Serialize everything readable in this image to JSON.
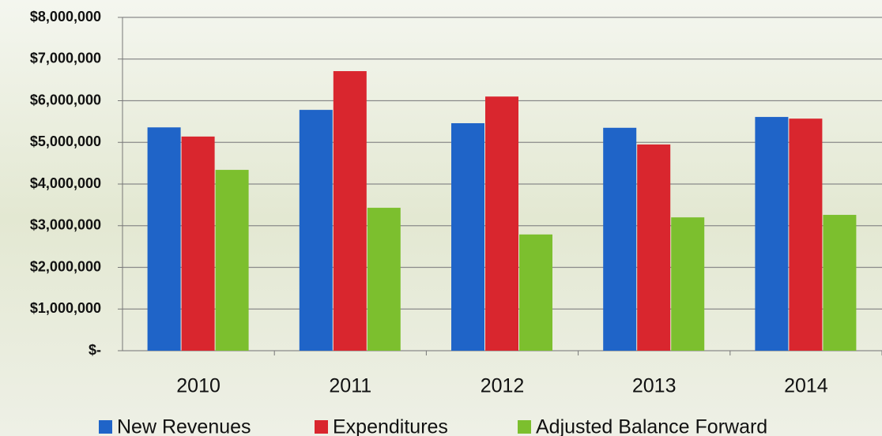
{
  "chart_data": {
    "type": "bar",
    "categories": [
      "2010",
      "2011",
      "2012",
      "2013",
      "2014"
    ],
    "series": [
      {
        "name": "New Revenues",
        "color": "#1f64c8",
        "values": [
          5360000,
          5780000,
          5460000,
          5350000,
          5610000
        ]
      },
      {
        "name": "Expenditures",
        "color": "#d9262e",
        "values": [
          5140000,
          6710000,
          6100000,
          4950000,
          5570000
        ]
      },
      {
        "name": "Adjusted Balance Forward",
        "color": "#7cbf2e",
        "values": [
          4340000,
          3430000,
          2790000,
          3200000,
          3260000
        ]
      }
    ],
    "ylim": [
      0,
      8000000
    ],
    "yticks": [
      {
        "value": 0,
        "label": "$-"
      },
      {
        "value": 1000000,
        "label": "$1,000,000"
      },
      {
        "value": 2000000,
        "label": "$2,000,000"
      },
      {
        "value": 3000000,
        "label": "$3,000,000"
      },
      {
        "value": 4000000,
        "label": "$4,000,000"
      },
      {
        "value": 5000000,
        "label": "$5,000,000"
      },
      {
        "value": 6000000,
        "label": "$6,000,000"
      },
      {
        "value": 7000000,
        "label": "$7,000,000"
      },
      {
        "value": 8000000,
        "label": "$8,000,000"
      }
    ],
    "grid": true,
    "legend": "bottom"
  }
}
